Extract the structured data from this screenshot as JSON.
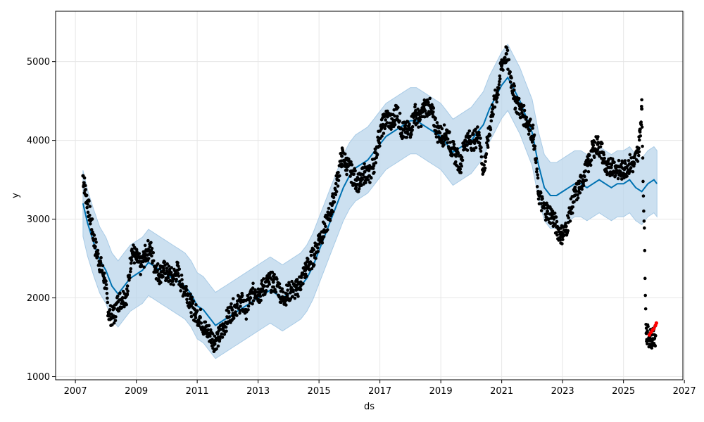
{
  "chart_data": {
    "type": "line",
    "title": "",
    "xlabel": "ds",
    "ylabel": "y",
    "xlim": [
      2006.35,
      2026.95
    ],
    "ylim": [
      960,
      5640
    ],
    "grid": true,
    "x_ticks": [
      "2007",
      "2009",
      "2011",
      "2013",
      "2015",
      "2017",
      "2019",
      "2021",
      "2023",
      "2025",
      "2027"
    ],
    "x_tick_values": [
      2007,
      2009,
      2011,
      2013,
      2015,
      2017,
      2019,
      2021,
      2023,
      2025,
      2027
    ],
    "y_ticks": [
      "1000",
      "2000",
      "3000",
      "4000",
      "5000"
    ],
    "y_tick_values": [
      1000,
      2000,
      3000,
      4000,
      5000
    ],
    "colors": {
      "observed": "#000000",
      "forecast": "#0072b2",
      "interval": "#b6d3ea",
      "highlight": "#ff0000",
      "grid": "#e6e6e6"
    },
    "series": [
      {
        "role": "forecast",
        "x": [
          2007.25,
          2007.4,
          2007.6,
          2007.8,
          2008.0,
          2008.2,
          2008.4,
          2008.6,
          2008.8,
          2009.0,
          2009.2,
          2009.4,
          2009.6,
          2009.8,
          2010.0,
          2010.2,
          2010.4,
          2010.6,
          2010.8,
          2011.0,
          2011.2,
          2011.4,
          2011.6,
          2011.8,
          2012.0,
          2012.2,
          2012.4,
          2012.6,
          2012.8,
          2013.0,
          2013.2,
          2013.4,
          2013.6,
          2013.8,
          2014.0,
          2014.2,
          2014.4,
          2014.6,
          2014.8,
          2015.0,
          2015.2,
          2015.4,
          2015.6,
          2015.8,
          2016.0,
          2016.2,
          2016.4,
          2016.6,
          2016.8,
          2017.0,
          2017.2,
          2017.4,
          2017.6,
          2017.8,
          2018.0,
          2018.2,
          2018.4,
          2018.6,
          2018.8,
          2019.0,
          2019.2,
          2019.4,
          2019.6,
          2019.8,
          2020.0,
          2020.2,
          2020.4,
          2020.6,
          2020.8,
          2021.0,
          2021.2,
          2021.4,
          2021.6,
          2021.8,
          2022.0,
          2022.2,
          2022.4,
          2022.6,
          2022.8,
          2023.0,
          2023.2,
          2023.4,
          2023.6,
          2023.8,
          2024.0,
          2024.2,
          2024.4,
          2024.6,
          2024.8,
          2025.0,
          2025.2,
          2025.4,
          2025.6,
          2025.8,
          2026.0,
          2026.1
        ],
        "y": [
          3200,
          2950,
          2700,
          2480,
          2350,
          2150,
          2050,
          2150,
          2250,
          2300,
          2350,
          2450,
          2400,
          2350,
          2300,
          2250,
          2200,
          2150,
          2050,
          1900,
          1850,
          1750,
          1650,
          1700,
          1750,
          1800,
          1850,
          1900,
          1950,
          2000,
          2050,
          2100,
          2050,
          2000,
          2050,
          2100,
          2150,
          2250,
          2400,
          2600,
          2800,
          3000,
          3200,
          3400,
          3550,
          3650,
          3700,
          3750,
          3850,
          3950,
          4050,
          4100,
          4150,
          4200,
          4250,
          4250,
          4200,
          4150,
          4100,
          4050,
          3950,
          3850,
          3900,
          3950,
          4000,
          4100,
          4200,
          4400,
          4550,
          4700,
          4800,
          4650,
          4500,
          4300,
          4100,
          3700,
          3400,
          3300,
          3300,
          3350,
          3400,
          3450,
          3450,
          3400,
          3450,
          3500,
          3450,
          3400,
          3450,
          3450,
          3500,
          3400,
          3350,
          3450,
          3500,
          3450
        ]
      },
      {
        "role": "observed",
        "x": [
          2007.25,
          2007.35,
          2007.5,
          2007.65,
          2007.8,
          2007.95,
          2008.1,
          2008.25,
          2008.4,
          2008.55,
          2008.7,
          2008.85,
          2009.0,
          2009.15,
          2009.3,
          2009.45,
          2009.6,
          2009.75,
          2009.9,
          2010.05,
          2010.2,
          2010.35,
          2010.5,
          2010.65,
          2010.8,
          2010.95,
          2011.1,
          2011.25,
          2011.4,
          2011.55,
          2011.7,
          2011.85,
          2012.0,
          2012.15,
          2012.3,
          2012.45,
          2012.6,
          2012.75,
          2012.9,
          2013.05,
          2013.2,
          2013.35,
          2013.5,
          2013.65,
          2013.8,
          2013.95,
          2014.1,
          2014.25,
          2014.4,
          2014.55,
          2014.7,
          2014.85,
          2015.0,
          2015.15,
          2015.3,
          2015.45,
          2015.6,
          2015.75,
          2015.9,
          2016.05,
          2016.2,
          2016.35,
          2016.5,
          2016.65,
          2016.8,
          2016.95,
          2017.1,
          2017.25,
          2017.4,
          2017.55,
          2017.7,
          2017.85,
          2018.0,
          2018.15,
          2018.3,
          2018.45,
          2018.6,
          2018.75,
          2018.9,
          2019.05,
          2019.2,
          2019.35,
          2019.5,
          2019.65,
          2019.8,
          2019.95,
          2020.1,
          2020.25,
          2020.4,
          2020.55,
          2020.7,
          2020.85,
          2021.0,
          2021.15,
          2021.3,
          2021.45,
          2021.6,
          2021.75,
          2021.9,
          2022.05,
          2022.2,
          2022.35,
          2022.5,
          2022.65,
          2022.8,
          2022.95,
          2023.1,
          2023.25,
          2023.4,
          2023.55,
          2023.7,
          2023.85,
          2024.0,
          2024.15,
          2024.3,
          2024.45,
          2024.6,
          2024.75,
          2024.9,
          2025.05,
          2025.2,
          2025.35,
          2025.5,
          2025.6,
          2025.75,
          2025.85,
          2025.95,
          2026.05
        ],
        "y": [
          3550,
          3300,
          3000,
          2650,
          2450,
          2250,
          1800,
          1750,
          1950,
          2000,
          2050,
          2600,
          2500,
          2400,
          2550,
          2650,
          2400,
          2300,
          2350,
          2300,
          2250,
          2350,
          2150,
          2100,
          1900,
          1800,
          1750,
          1600,
          1550,
          1450,
          1500,
          1600,
          1750,
          1850,
          1900,
          1950,
          1850,
          2000,
          2100,
          2050,
          2150,
          2200,
          2200,
          2150,
          2000,
          2050,
          2100,
          2100,
          2200,
          2350,
          2450,
          2550,
          2750,
          2850,
          3000,
          3200,
          3500,
          3800,
          3700,
          3600,
          3500,
          3450,
          3600,
          3550,
          3700,
          4000,
          4200,
          4300,
          4200,
          4400,
          4150,
          4100,
          4150,
          4350,
          4250,
          4400,
          4450,
          4300,
          4100,
          4050,
          4100,
          3900,
          3800,
          3700,
          4000,
          4000,
          4000,
          4100,
          3600,
          4000,
          4400,
          4600,
          4950,
          5100,
          4800,
          4500,
          4400,
          4300,
          4200,
          4050,
          3350,
          3150,
          3100,
          3050,
          2900,
          2800,
          2850,
          3100,
          3300,
          3400,
          3550,
          3700,
          3900,
          3950,
          3850,
          3600,
          3700,
          3650,
          3600,
          3650,
          3700,
          3700,
          3900,
          4400,
          1550,
          1500,
          1480,
          1520
        ]
      },
      {
        "role": "highlight",
        "x": [
          2025.85,
          2025.9,
          2025.95,
          2026.0,
          2026.05,
          2026.08
        ],
        "y": [
          1530,
          1560,
          1590,
          1610,
          1650,
          1680
        ]
      }
    ]
  }
}
